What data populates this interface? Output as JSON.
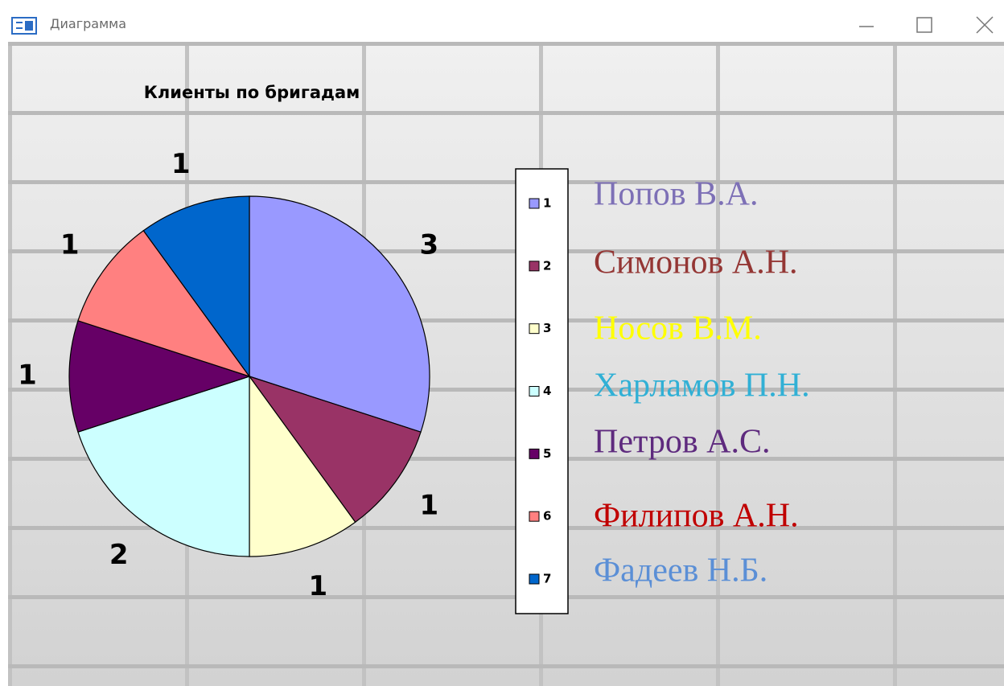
{
  "window": {
    "title": "Диаграмма"
  },
  "chart_data": {
    "type": "pie",
    "title": "Клиенты по бригадам",
    "categories": [
      "1",
      "2",
      "3",
      "4",
      "5",
      "6",
      "7"
    ],
    "values": [
      3,
      1,
      1,
      2,
      1,
      1,
      1
    ],
    "colors": [
      "#9999ff",
      "#993366",
      "#ffffcc",
      "#ccffff",
      "#660066",
      "#ff8080",
      "#0066cc"
    ],
    "legend": "right"
  },
  "names": [
    {
      "text": "Попов В.А.",
      "color": "#7d70b6"
    },
    {
      "text": "Симонов А.Н.",
      "color": "#943634"
    },
    {
      "text": "Носов В.М.",
      "color": "#ffff00"
    },
    {
      "text": "Харламов П.Н.",
      "color": "#31b0d5"
    },
    {
      "text": "Петров А.С.",
      "color": "#5e2a7e"
    },
    {
      "text": "Филипов А.Н.",
      "color": "#c00000"
    },
    {
      "text": "Фадеев Н.Б.",
      "color": "#5b8fd6"
    }
  ]
}
